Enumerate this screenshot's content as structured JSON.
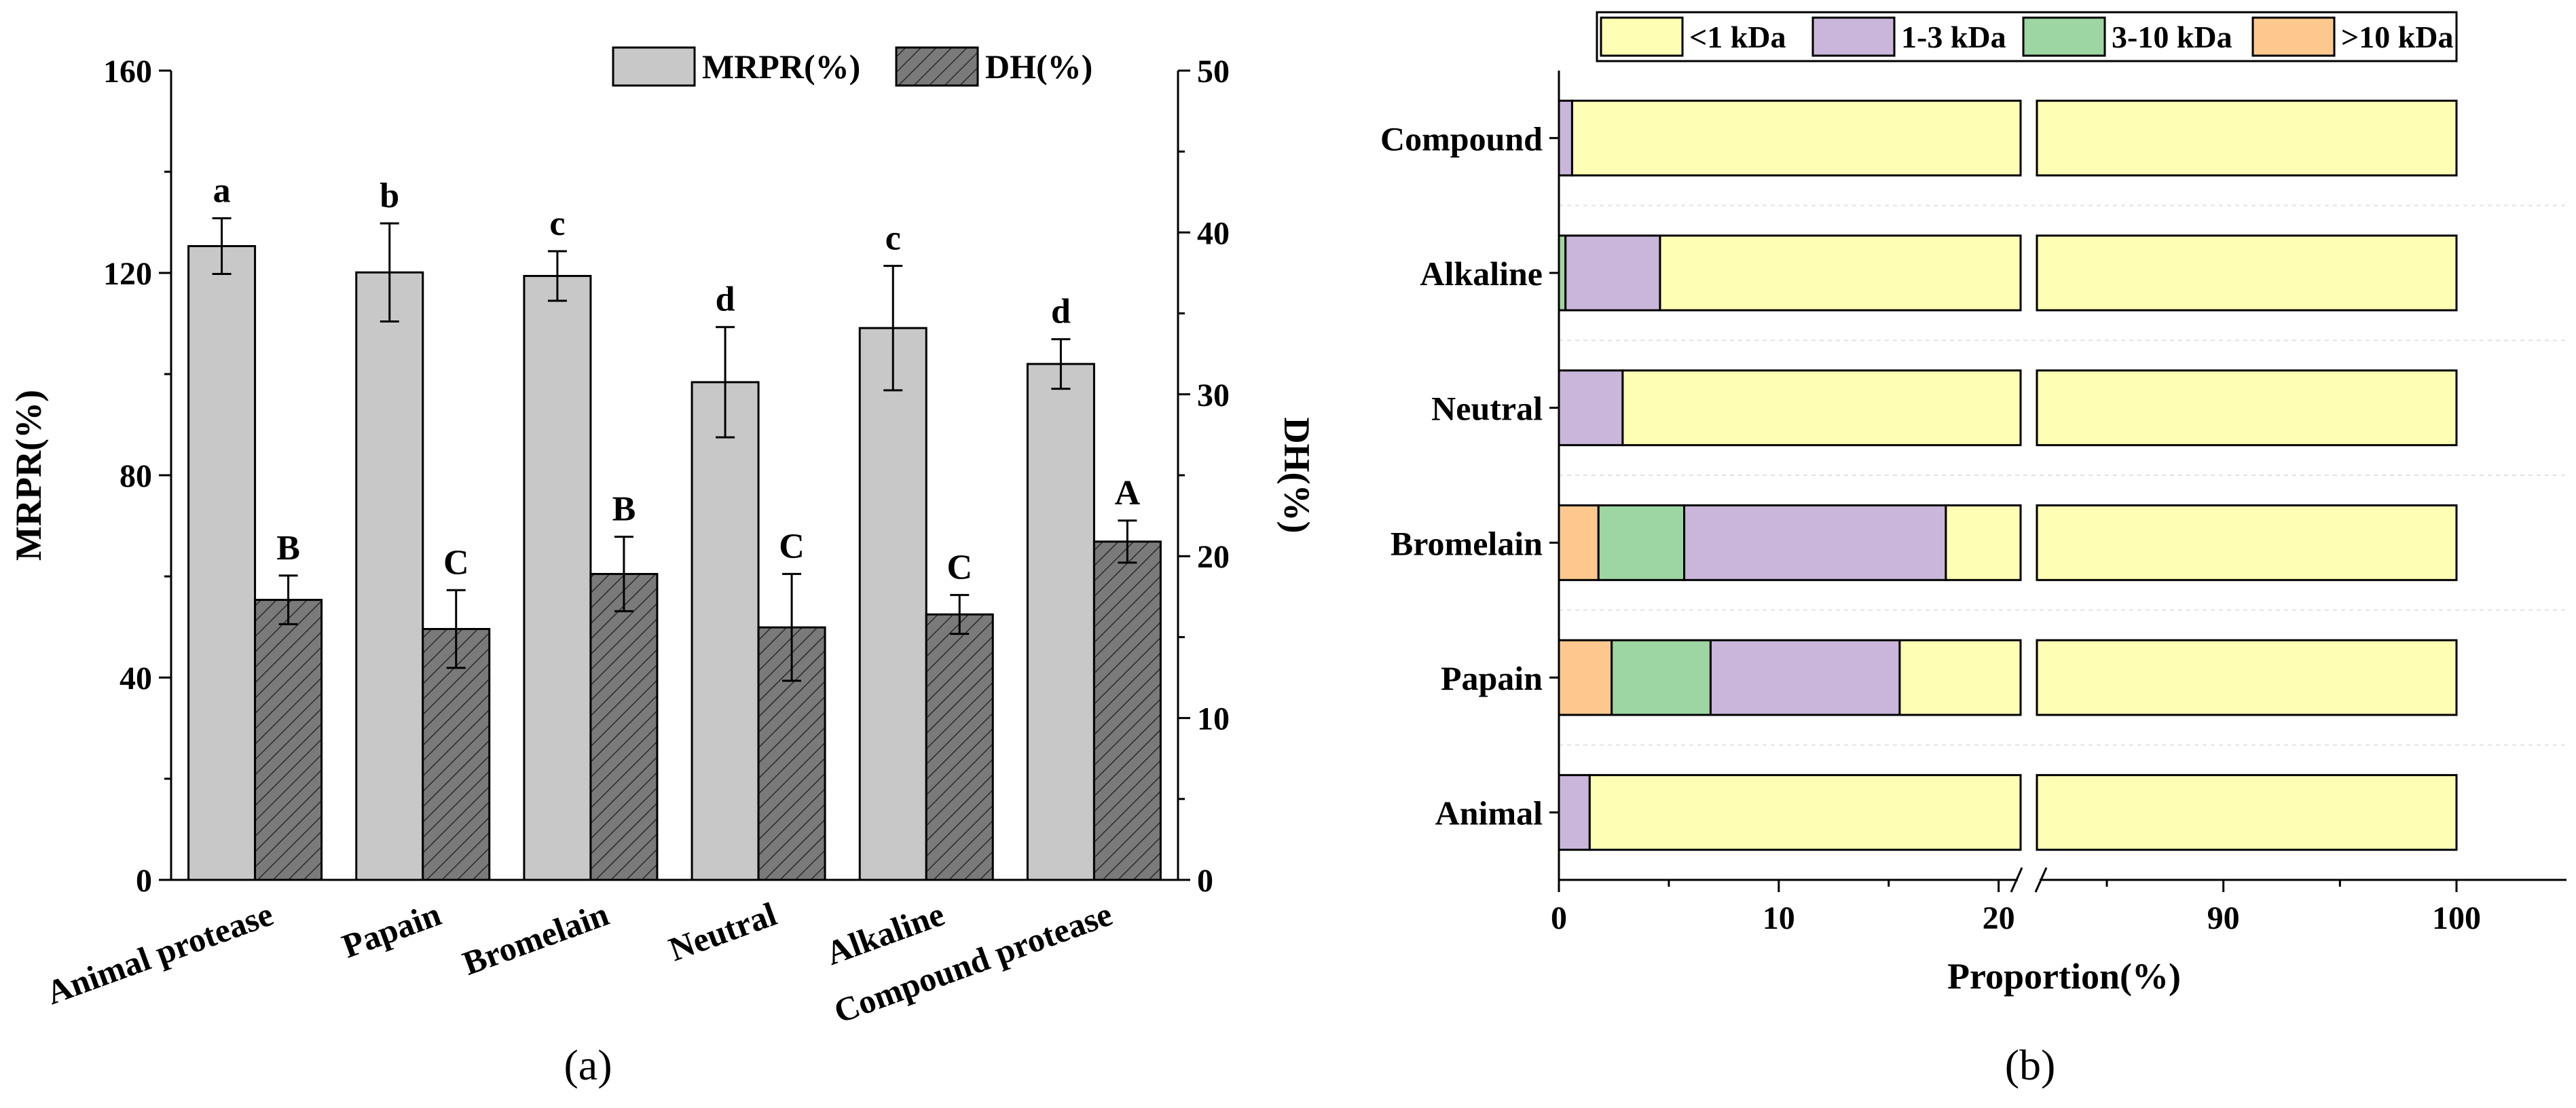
{
  "figure": {
    "panel_a_label": "(a)",
    "panel_b_label": "(b)"
  },
  "chart_data": [
    {
      "type": "bar",
      "panel": "(a)",
      "categories": [
        "Animal protease",
        "Papain",
        "Bromelain",
        "Neutral",
        "Alkaline",
        "Compound protease"
      ],
      "xlabel": "",
      "ylabel": "MRPR(%)",
      "ylabel_right": "DH(%)",
      "ylim": [
        0,
        160
      ],
      "ylim_right": [
        0,
        50
      ],
      "yticks": [
        0,
        40,
        80,
        120,
        160
      ],
      "yticks_right": [
        0,
        10,
        20,
        30,
        40,
        50
      ],
      "legend_position": "top",
      "grid": false,
      "series": [
        {
          "name": "MRPR(%)",
          "axis": "left",
          "color": "#c8c8c8",
          "pattern": "solid",
          "values": [
            125.3,
            120.1,
            119.4,
            98.4,
            109.1,
            102.0
          ],
          "errors": [
            5.5,
            9.7,
            4.9,
            10.9,
            12.3,
            4.9
          ],
          "labels": [
            "a",
            "b",
            "c",
            "d",
            "c",
            "d"
          ]
        },
        {
          "name": "DH(%)",
          "axis": "right",
          "color": "#7a7a7a",
          "pattern": "hatch",
          "values": [
            17.3,
            15.5,
            18.9,
            15.6,
            16.4,
            20.9
          ],
          "errors": [
            1.5,
            2.4,
            2.3,
            3.3,
            1.2,
            1.3
          ],
          "labels": [
            "B",
            "C",
            "B",
            "C",
            "C",
            "A"
          ]
        }
      ]
    },
    {
      "type": "bar",
      "orientation": "horizontal",
      "stacked": true,
      "panel": "(b)",
      "categories": [
        "Animal",
        "Papain",
        "Bromelain",
        "Neutral",
        "Alkaline",
        "Compound"
      ],
      "xlabel": "Proportion(%)",
      "ylabel": "",
      "xlim": [
        0,
        100
      ],
      "xticks": [
        0,
        10,
        20,
        90,
        100
      ],
      "axis_break": [
        21,
        82
      ],
      "legend_position": "top",
      "grid": false,
      "series": [
        {
          "name": ">10 kDa",
          "color": "#fcc88e",
          "values": [
            0.0,
            2.4,
            1.8,
            0.0,
            0.0,
            0.0
          ]
        },
        {
          "name": "3-10 kDa",
          "color": "#9dd6a2",
          "values": [
            0.0,
            4.5,
            3.9,
            0.0,
            0.3,
            0.0
          ]
        },
        {
          "name": "1-3 kDa",
          "color": "#c9b6da",
          "values": [
            1.4,
            8.6,
            11.9,
            2.9,
            4.3,
            0.6
          ]
        },
        {
          "name": "<1 kDa",
          "color": "#fefeb4",
          "values": [
            98.6,
            84.5,
            82.4,
            97.1,
            95.4,
            99.4
          ]
        }
      ]
    }
  ]
}
